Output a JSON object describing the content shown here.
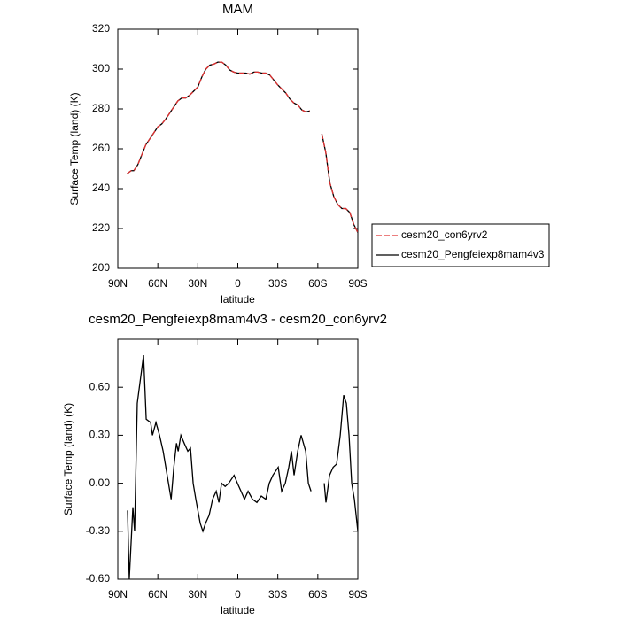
{
  "chart_data": [
    {
      "type": "line",
      "title": "MAM",
      "xlabel": "latitude",
      "ylabel": "Surface Temp (land) (K)",
      "x": [
        83,
        80,
        78,
        75,
        72,
        69,
        66,
        63,
        60,
        57,
        54,
        51,
        48,
        45,
        42,
        39,
        36,
        33,
        30,
        27,
        24,
        21,
        18,
        15,
        12,
        9,
        6,
        3,
        0,
        -3,
        -6,
        -9,
        -12,
        -15,
        -18,
        -21,
        -24,
        -27,
        -30,
        -33,
        -36,
        -39,
        -42,
        -45,
        -48,
        -51,
        -54,
        -57,
        -60,
        -63,
        -66,
        -69,
        -72,
        -75,
        -78,
        -81,
        -84,
        -87,
        -90
      ],
      "series": [
        {
          "name": "cesm20_con6yrv2",
          "color": "#e03030",
          "line_style": "dashed",
          "values": [
            247.5,
            249,
            249,
            252,
            257,
            262,
            265,
            268,
            271,
            272.5,
            275,
            278,
            281,
            284,
            285.5,
            285.5,
            287,
            289,
            291,
            296,
            300,
            302,
            302.5,
            303.5,
            303.5,
            302,
            299.5,
            298.5,
            298,
            298,
            298,
            297.5,
            298.5,
            298.5,
            298,
            298,
            297,
            294.5,
            292,
            290,
            288,
            285,
            283,
            282,
            279.5,
            278.5,
            279,
            null,
            null,
            267.5,
            258,
            243,
            236,
            232,
            230,
            230,
            228,
            222,
            218
          ]
        },
        {
          "name": "cesm20_Pengfeiexp8mam4v3",
          "color": "#000000",
          "line_style": "solid",
          "values": [
            247.5,
            249,
            249,
            252,
            257,
            262,
            265,
            268,
            271,
            272.5,
            275,
            278,
            281,
            284,
            285.5,
            285.5,
            287,
            289,
            291,
            296,
            300,
            302,
            302.5,
            303.5,
            303.5,
            302,
            299.5,
            298.5,
            298,
            298,
            298,
            297.5,
            298.5,
            298.5,
            298,
            298,
            297,
            294.5,
            292,
            290,
            288,
            285,
            283,
            282,
            279.5,
            278.5,
            279,
            null,
            null,
            267.5,
            258,
            243,
            236,
            232,
            230,
            230,
            228,
            222,
            218
          ]
        }
      ],
      "xlim": [
        90,
        -90
      ],
      "xticks": [
        {
          "value": 90,
          "label": "90N"
        },
        {
          "value": 60,
          "label": "60N"
        },
        {
          "value": 30,
          "label": "30N"
        },
        0,
        {
          "value": -30,
          "label": "30S"
        },
        {
          "value": -60,
          "label": "60S"
        },
        {
          "value": -90,
          "label": "90S"
        }
      ],
      "ylim": [
        200,
        320
      ],
      "yticks": [
        200,
        220,
        240,
        260,
        280,
        300,
        320
      ],
      "legend": "right"
    },
    {
      "type": "line",
      "title": "cesm20_Pengfeiexp8mam4v3 - cesm20_con6yrv2",
      "xlabel": "latitude",
      "ylabel": "Surface Temp (land) (K)",
      "x": [
        82.7,
        81.4,
        78.7,
        77.4,
        75.4,
        70.7,
        68.7,
        65.4,
        64.0,
        61.4,
        58.7,
        56.0,
        54.0,
        52.0,
        50.0,
        48.0,
        46.0,
        44.7,
        42.7,
        40.2,
        37.5,
        35.5,
        33.5,
        31.5,
        28.2,
        26.2,
        24.2,
        21.5,
        18.9,
        16.2,
        14.2,
        12.2,
        9.5,
        6.8,
        2.8,
        0.3,
        -2.4,
        -5.0,
        -7.7,
        -11.0,
        -14.3,
        -17.6,
        -21.0,
        -23.6,
        -26.3,
        -30.3,
        -32.9,
        -35.6,
        -38.2,
        -40.2,
        -42.2,
        -44.9,
        -47.5,
        -50.9,
        -52.9,
        -54.9,
        -60,
        -64.8,
        -66.1,
        -68.8,
        -71.5,
        -74.1,
        -76.8,
        -79.4,
        -81.4,
        -83.4,
        -85.4,
        -87.4,
        -90
      ],
      "series": [
        {
          "name": "cesm20_Pengfeiexp8mam4v3 - cesm20_con6yrv2",
          "color": "#000000",
          "line_style": "solid",
          "values": [
            -0.17,
            -0.6,
            -0.15,
            -0.3,
            0.5,
            0.8,
            0.4,
            0.38,
            0.3,
            0.38,
            0.3,
            0.2,
            0.1,
            0.0,
            -0.1,
            0.1,
            0.25,
            0.2,
            0.3,
            0.25,
            0.2,
            0.22,
            0.0,
            -0.1,
            -0.25,
            -0.3,
            -0.25,
            -0.2,
            -0.1,
            -0.05,
            -0.12,
            0.0,
            -0.02,
            0.0,
            0.05,
            0.0,
            -0.05,
            -0.1,
            -0.05,
            -0.1,
            -0.12,
            -0.08,
            -0.1,
            0.0,
            0.05,
            0.1,
            -0.05,
            0.0,
            0.1,
            0.2,
            0.05,
            0.2,
            0.3,
            0.2,
            0.0,
            -0.05,
            null,
            0.0,
            -0.12,
            0.05,
            0.1,
            0.12,
            0.3,
            0.55,
            0.5,
            0.3,
            0.0,
            -0.1,
            -0.3
          ]
        }
      ],
      "xlim": [
        90,
        -90
      ],
      "xticks": [
        {
          "value": 90,
          "label": "90N"
        },
        {
          "value": 60,
          "label": "60N"
        },
        {
          "value": 30,
          "label": "30N"
        },
        0,
        {
          "value": -30,
          "label": "30S"
        },
        {
          "value": -60,
          "label": "60S"
        },
        {
          "value": -90,
          "label": "90S"
        }
      ],
      "ylim": [
        -0.6,
        0.9
      ],
      "yticks": [
        {
          "value": -0.6,
          "label": "-0.60"
        },
        {
          "value": -0.3,
          "label": "-0.30"
        },
        {
          "value": 0,
          "label": "0.00"
        },
        {
          "value": 0.3,
          "label": "0.30"
        },
        {
          "value": 0.6,
          "label": "0.60"
        }
      ]
    }
  ]
}
